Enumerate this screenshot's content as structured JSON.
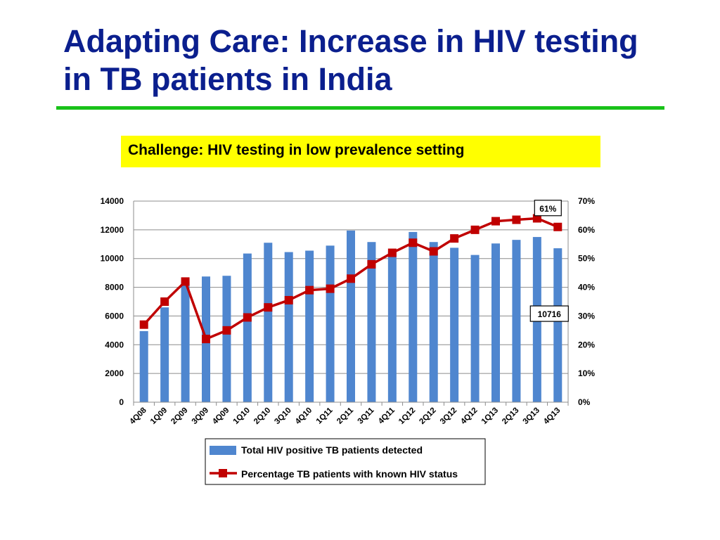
{
  "slide": {
    "title": "Adapting Care: Increase in HIV testing in TB patients in India",
    "callout": "Challenge: HIV testing in low prevalence setting"
  },
  "colors": {
    "title": "#0b1f8e",
    "rule": "#19c219",
    "callout_bg": "#ffff00",
    "bar": "#4f86cf",
    "line": "#c00000"
  },
  "chart_data": {
    "type": "bar",
    "categories": [
      "4Q08",
      "1Q09",
      "2Q09",
      "3Q09",
      "4Q09",
      "1Q10",
      "2Q10",
      "3Q10",
      "4Q10",
      "1Q11",
      "2Q11",
      "3Q11",
      "4Q11",
      "1Q12",
      "2Q12",
      "3Q12",
      "4Q12",
      "1Q13",
      "2Q13",
      "3Q13",
      "4Q13"
    ],
    "series": [
      {
        "name": "Total HIV positive TB patients detected",
        "type": "bar",
        "axis": "left",
        "values": [
          4950,
          6600,
          8400,
          8750,
          8800,
          10350,
          11100,
          10450,
          10550,
          10900,
          11950,
          11150,
          10500,
          11850,
          11150,
          10750,
          10250,
          11050,
          11300,
          11500,
          10716
        ]
      },
      {
        "name": "Percentage TB patients with known HIV status",
        "type": "line",
        "axis": "right",
        "values": [
          27,
          35,
          42,
          22,
          25,
          29.5,
          33,
          35.5,
          39,
          39.5,
          43,
          48,
          52,
          55.5,
          52.5,
          57,
          60,
          63,
          63.5,
          64,
          61
        ]
      }
    ],
    "y_left": {
      "ticks": [
        "0",
        "2000",
        "4000",
        "6000",
        "8000",
        "10000",
        "12000",
        "14000"
      ],
      "ylim": [
        0,
        14000
      ]
    },
    "y_right": {
      "ticks": [
        "0%",
        "10%",
        "20%",
        "30%",
        "40%",
        "50%",
        "60%",
        "70%"
      ],
      "ylim": [
        0,
        70
      ]
    },
    "annotations": [
      {
        "text": "61%",
        "target": "last-line-point"
      },
      {
        "text": "10716",
        "target": "last-bar"
      }
    ],
    "grid": true,
    "legend_position": "bottom"
  }
}
